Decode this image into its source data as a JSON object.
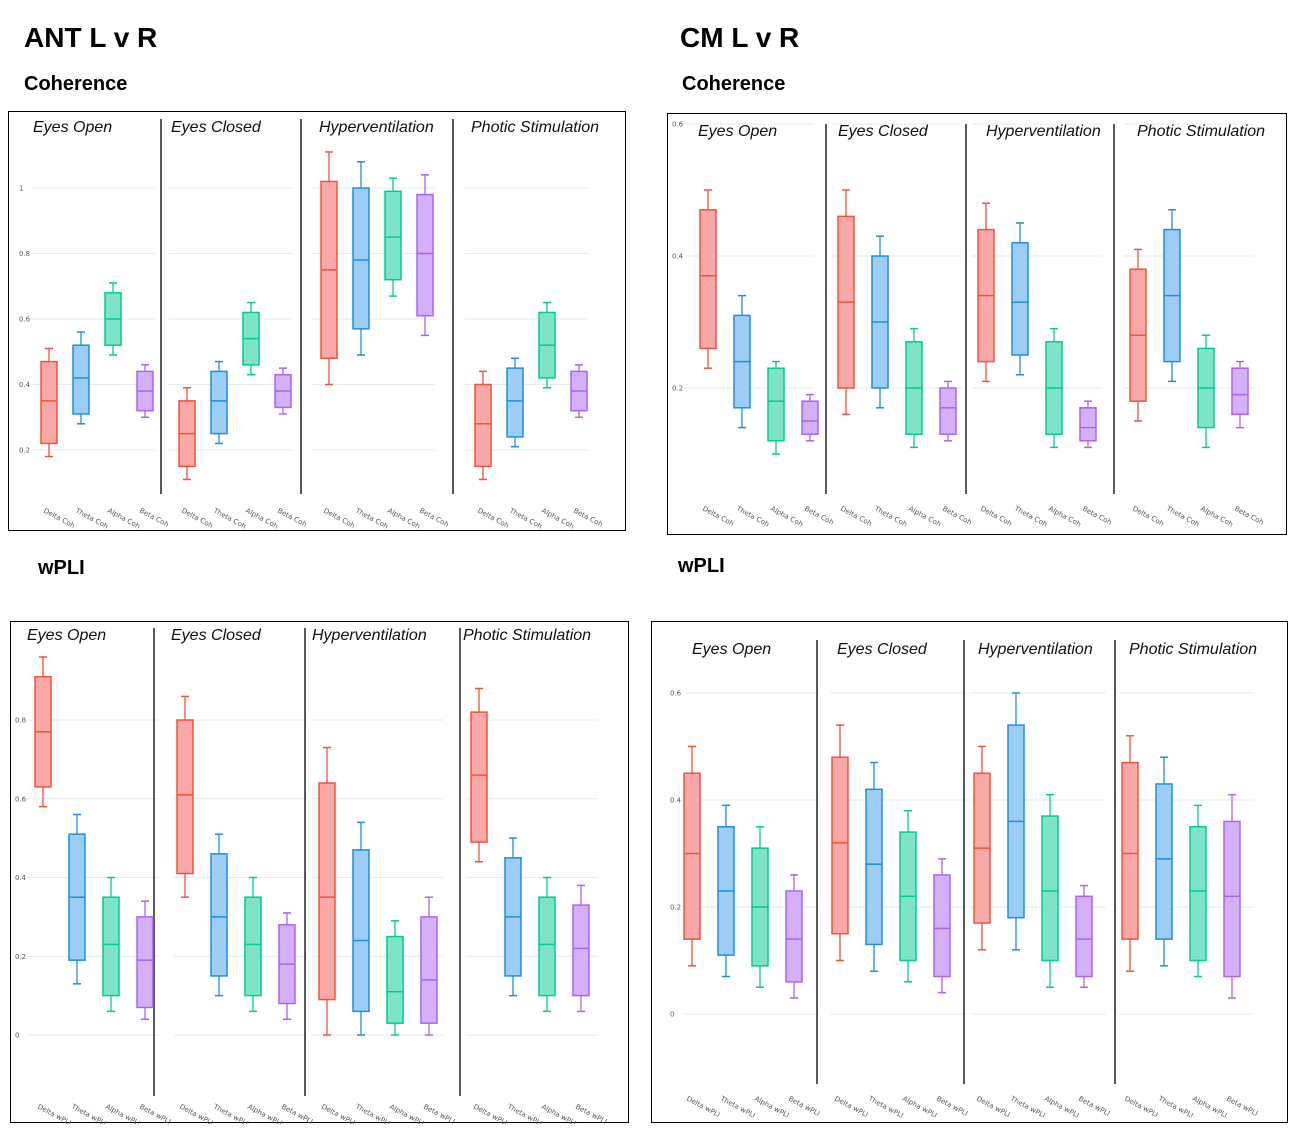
{
  "headings": {
    "left_title": "ANT L v R",
    "right_title": "CM L v R",
    "left_coherence": "Coherence",
    "right_coherence": "Coherence",
    "left_wpli": "wPLI",
    "right_wpli": "wPLI"
  },
  "colors": {
    "delta": "#EF553B",
    "theta": "#1f8fe0",
    "alpha": "#00CC96",
    "beta": "#AB63FA",
    "delta_fill": "#f9a8a8",
    "theta_fill": "#9ccdf5",
    "alpha_fill": "#7fe3c8",
    "beta_fill": "#d4b0f8"
  },
  "chart_data": [
    {
      "id": "ant-coherence",
      "type": "box",
      "title": "ANT L v R — Coherence",
      "panels": [
        "Eyes Open",
        "Eyes Closed",
        "Hyperventilation",
        "Photic Stimulation"
      ],
      "categories": [
        "Delta Coh",
        "Theta Coh",
        "Alpha Coh",
        "Beta Coh"
      ],
      "yticks": [
        "0.2",
        "0.4",
        "0.6",
        "0.8",
        "1"
      ],
      "ytick_values": [
        0.2,
        0.4,
        0.6,
        0.8,
        1.0
      ],
      "ylim": [
        0.05,
        1.2
      ],
      "grid": true,
      "series": [
        {
          "panel": "Eyes Open",
          "boxes": [
            {
              "name": "Delta Coh",
              "min": 0.18,
              "q1": 0.22,
              "median": 0.35,
              "q3": 0.47,
              "max": 0.51
            },
            {
              "name": "Theta Coh",
              "min": 0.28,
              "q1": 0.31,
              "median": 0.42,
              "q3": 0.52,
              "max": 0.56
            },
            {
              "name": "Alpha Coh",
              "min": 0.49,
              "q1": 0.52,
              "median": 0.6,
              "q3": 0.68,
              "max": 0.71
            },
            {
              "name": "Beta Coh",
              "min": 0.3,
              "q1": 0.32,
              "median": 0.38,
              "q3": 0.44,
              "max": 0.46
            }
          ]
        },
        {
          "panel": "Eyes Closed",
          "boxes": [
            {
              "name": "Delta Coh",
              "min": 0.11,
              "q1": 0.15,
              "median": 0.25,
              "q3": 0.35,
              "max": 0.39
            },
            {
              "name": "Theta Coh",
              "min": 0.22,
              "q1": 0.25,
              "median": 0.35,
              "q3": 0.44,
              "max": 0.47
            },
            {
              "name": "Alpha Coh",
              "min": 0.43,
              "q1": 0.46,
              "median": 0.54,
              "q3": 0.62,
              "max": 0.65
            },
            {
              "name": "Beta Coh",
              "min": 0.31,
              "q1": 0.33,
              "median": 0.38,
              "q3": 0.43,
              "max": 0.45
            }
          ]
        },
        {
          "panel": "Hyperventilation",
          "boxes": [
            {
              "name": "Delta Coh",
              "min": 0.4,
              "q1": 0.48,
              "median": 0.75,
              "q3": 1.02,
              "max": 1.11
            },
            {
              "name": "Theta Coh",
              "min": 0.49,
              "q1": 0.57,
              "median": 0.78,
              "q3": 1.0,
              "max": 1.08
            },
            {
              "name": "Alpha Coh",
              "min": 0.67,
              "q1": 0.72,
              "median": 0.85,
              "q3": 0.99,
              "max": 1.03
            },
            {
              "name": "Beta Coh",
              "min": 0.55,
              "q1": 0.61,
              "median": 0.8,
              "q3": 0.98,
              "max": 1.04
            }
          ]
        },
        {
          "panel": "Photic Stimulation",
          "boxes": [
            {
              "name": "Delta Coh",
              "min": 0.11,
              "q1": 0.15,
              "median": 0.28,
              "q3": 0.4,
              "max": 0.44
            },
            {
              "name": "Theta Coh",
              "min": 0.21,
              "q1": 0.24,
              "median": 0.35,
              "q3": 0.45,
              "max": 0.48
            },
            {
              "name": "Alpha Coh",
              "min": 0.39,
              "q1": 0.42,
              "median": 0.52,
              "q3": 0.62,
              "max": 0.65
            },
            {
              "name": "Beta Coh",
              "min": 0.3,
              "q1": 0.32,
              "median": 0.38,
              "q3": 0.44,
              "max": 0.46
            }
          ]
        }
      ]
    },
    {
      "id": "cm-coherence",
      "type": "box",
      "title": "CM L v R — Coherence",
      "panels": [
        "Eyes Open",
        "Eyes Closed",
        "Hyperventilation",
        "Photic Stimulation"
      ],
      "categories": [
        "Delta Coh",
        "Theta Coh",
        "Alpha Coh",
        "Beta Coh"
      ],
      "yticks": [
        "0.2",
        "0.4",
        "0.6"
      ],
      "ytick_values": [
        0.2,
        0.4,
        0.6
      ],
      "ylim": [
        0.08,
        0.6
      ],
      "grid": true,
      "series": [
        {
          "panel": "Eyes Open",
          "boxes": [
            {
              "name": "Delta Coh",
              "min": 0.23,
              "q1": 0.26,
              "median": 0.37,
              "q3": 0.47,
              "max": 0.5
            },
            {
              "name": "Theta Coh",
              "min": 0.14,
              "q1": 0.17,
              "median": 0.24,
              "q3": 0.31,
              "max": 0.34
            },
            {
              "name": "Alpha Coh",
              "min": 0.1,
              "q1": 0.12,
              "median": 0.18,
              "q3": 0.23,
              "max": 0.24
            },
            {
              "name": "Beta Coh",
              "min": 0.12,
              "q1": 0.13,
              "median": 0.15,
              "q3": 0.18,
              "max": 0.19
            }
          ]
        },
        {
          "panel": "Eyes Closed",
          "boxes": [
            {
              "name": "Delta Coh",
              "min": 0.16,
              "q1": 0.2,
              "median": 0.33,
              "q3": 0.46,
              "max": 0.5
            },
            {
              "name": "Theta Coh",
              "min": 0.17,
              "q1": 0.2,
              "median": 0.3,
              "q3": 0.4,
              "max": 0.43
            },
            {
              "name": "Alpha Coh",
              "min": 0.11,
              "q1": 0.13,
              "median": 0.2,
              "q3": 0.27,
              "max": 0.29
            },
            {
              "name": "Beta Coh",
              "min": 0.12,
              "q1": 0.13,
              "median": 0.17,
              "q3": 0.2,
              "max": 0.21
            }
          ]
        },
        {
          "panel": "Hyperventilation",
          "boxes": [
            {
              "name": "Delta Coh",
              "min": 0.21,
              "q1": 0.24,
              "median": 0.34,
              "q3": 0.44,
              "max": 0.48
            },
            {
              "name": "Theta Coh",
              "min": 0.22,
              "q1": 0.25,
              "median": 0.33,
              "q3": 0.42,
              "max": 0.45
            },
            {
              "name": "Alpha Coh",
              "min": 0.11,
              "q1": 0.13,
              "median": 0.2,
              "q3": 0.27,
              "max": 0.29
            },
            {
              "name": "Beta Coh",
              "min": 0.11,
              "q1": 0.12,
              "median": 0.14,
              "q3": 0.17,
              "max": 0.18
            }
          ]
        },
        {
          "panel": "Photic Stimulation",
          "boxes": [
            {
              "name": "Delta Coh",
              "min": 0.15,
              "q1": 0.18,
              "median": 0.28,
              "q3": 0.38,
              "max": 0.41
            },
            {
              "name": "Theta Coh",
              "min": 0.21,
              "q1": 0.24,
              "median": 0.34,
              "q3": 0.44,
              "max": 0.47
            },
            {
              "name": "Alpha Coh",
              "min": 0.11,
              "q1": 0.14,
              "median": 0.2,
              "q3": 0.26,
              "max": 0.28
            },
            {
              "name": "Beta Coh",
              "min": 0.14,
              "q1": 0.16,
              "median": 0.19,
              "q3": 0.23,
              "max": 0.24
            }
          ]
        }
      ]
    },
    {
      "id": "ant-wpli",
      "type": "box",
      "title": "ANT L v R — wPLI",
      "panels": [
        "Eyes Open",
        "Eyes Closed",
        "Hyperventilation",
        "Photic Stimulation"
      ],
      "categories": [
        "Delta wPLI",
        "Theta wPLI",
        "Alpha wPLI",
        "Beta wPLI"
      ],
      "yticks": [
        "0",
        "0.2",
        "0.4",
        "0.6",
        "0.8"
      ],
      "ytick_values": [
        0,
        0.2,
        0.4,
        0.6,
        0.8
      ],
      "ylim": [
        -0.14,
        0.97
      ],
      "grid": true,
      "series": [
        {
          "panel": "Eyes Open",
          "boxes": [
            {
              "name": "Delta wPLI",
              "min": 0.58,
              "q1": 0.63,
              "median": 0.77,
              "q3": 0.91,
              "max": 0.96
            },
            {
              "name": "Theta wPLI",
              "min": 0.13,
              "q1": 0.19,
              "median": 0.35,
              "q3": 0.51,
              "max": 0.56
            },
            {
              "name": "Alpha wPLI",
              "min": 0.06,
              "q1": 0.1,
              "median": 0.23,
              "q3": 0.35,
              "max": 0.4
            },
            {
              "name": "Beta wPLI",
              "min": 0.04,
              "q1": 0.07,
              "median": 0.19,
              "q3": 0.3,
              "max": 0.34
            }
          ]
        },
        {
          "panel": "Eyes Closed",
          "boxes": [
            {
              "name": "Delta wPLI",
              "min": 0.35,
              "q1": 0.41,
              "median": 0.61,
              "q3": 0.8,
              "max": 0.86
            },
            {
              "name": "Theta wPLI",
              "min": 0.1,
              "q1": 0.15,
              "median": 0.3,
              "q3": 0.46,
              "max": 0.51
            },
            {
              "name": "Alpha wPLI",
              "min": 0.06,
              "q1": 0.1,
              "median": 0.23,
              "q3": 0.35,
              "max": 0.4
            },
            {
              "name": "Beta wPLI",
              "min": 0.04,
              "q1": 0.08,
              "median": 0.18,
              "q3": 0.28,
              "max": 0.31
            }
          ]
        },
        {
          "panel": "Hyperventilation",
          "boxes": [
            {
              "name": "Delta wPLI",
              "min": 0.0,
              "q1": 0.09,
              "median": 0.35,
              "q3": 0.64,
              "max": 0.73
            },
            {
              "name": "Theta wPLI",
              "min": 0.0,
              "q1": 0.06,
              "median": 0.24,
              "q3": 0.47,
              "max": 0.54
            },
            {
              "name": "Alpha wPLI",
              "min": 0.0,
              "q1": 0.03,
              "median": 0.11,
              "q3": 0.25,
              "max": 0.29
            },
            {
              "name": "Beta wPLI",
              "min": 0.0,
              "q1": 0.03,
              "median": 0.14,
              "q3": 0.3,
              "max": 0.35
            }
          ]
        },
        {
          "panel": "Photic Stimulation",
          "boxes": [
            {
              "name": "Delta wPLI",
              "min": 0.44,
              "q1": 0.49,
              "median": 0.66,
              "q3": 0.82,
              "max": 0.88
            },
            {
              "name": "Theta wPLI",
              "min": 0.1,
              "q1": 0.15,
              "median": 0.3,
              "q3": 0.45,
              "max": 0.5
            },
            {
              "name": "Alpha wPLI",
              "min": 0.06,
              "q1": 0.1,
              "median": 0.23,
              "q3": 0.35,
              "max": 0.4
            },
            {
              "name": "Beta wPLI",
              "min": 0.06,
              "q1": 0.1,
              "median": 0.22,
              "q3": 0.33,
              "max": 0.38
            }
          ]
        }
      ]
    },
    {
      "id": "cm-wpli",
      "type": "box",
      "title": "CM L v R — wPLI",
      "panels": [
        "Eyes Open",
        "Eyes Closed",
        "Hyperventilation",
        "Photic Stimulation"
      ],
      "categories": [
        "Delta wPLI",
        "Theta wPLI",
        "Alpha wPLI",
        "Beta wPLI"
      ],
      "yticks": [
        "0",
        "0.2",
        "0.4",
        "0.6"
      ],
      "ytick_values": [
        0,
        0.2,
        0.4,
        0.6
      ],
      "ylim": [
        -0.13,
        0.72
      ],
      "grid": true,
      "series": [
        {
          "panel": "Eyes Open",
          "boxes": [
            {
              "name": "Delta wPLI",
              "min": 0.09,
              "q1": 0.14,
              "median": 0.3,
              "q3": 0.45,
              "max": 0.5
            },
            {
              "name": "Theta wPLI",
              "min": 0.07,
              "q1": 0.11,
              "median": 0.23,
              "q3": 0.35,
              "max": 0.39
            },
            {
              "name": "Alpha wPLI",
              "min": 0.05,
              "q1": 0.09,
              "median": 0.2,
              "q3": 0.31,
              "max": 0.35
            },
            {
              "name": "Beta wPLI",
              "min": 0.03,
              "q1": 0.06,
              "median": 0.14,
              "q3": 0.23,
              "max": 0.26
            }
          ]
        },
        {
          "panel": "Eyes Closed",
          "boxes": [
            {
              "name": "Delta wPLI",
              "min": 0.1,
              "q1": 0.15,
              "median": 0.32,
              "q3": 0.48,
              "max": 0.54
            },
            {
              "name": "Theta wPLI",
              "min": 0.08,
              "q1": 0.13,
              "median": 0.28,
              "q3": 0.42,
              "max": 0.47
            },
            {
              "name": "Alpha wPLI",
              "min": 0.06,
              "q1": 0.1,
              "median": 0.22,
              "q3": 0.34,
              "max": 0.38
            },
            {
              "name": "Beta wPLI",
              "min": 0.04,
              "q1": 0.07,
              "median": 0.16,
              "q3": 0.26,
              "max": 0.29
            }
          ]
        },
        {
          "panel": "Hyperventilation",
          "boxes": [
            {
              "name": "Delta wPLI",
              "min": 0.12,
              "q1": 0.17,
              "median": 0.31,
              "q3": 0.45,
              "max": 0.5
            },
            {
              "name": "Theta wPLI",
              "min": 0.12,
              "q1": 0.18,
              "median": 0.36,
              "q3": 0.54,
              "max": 0.6
            },
            {
              "name": "Alpha wPLI",
              "min": 0.05,
              "q1": 0.1,
              "median": 0.23,
              "q3": 0.37,
              "max": 0.41
            },
            {
              "name": "Beta wPLI",
              "min": 0.05,
              "q1": 0.07,
              "median": 0.14,
              "q3": 0.22,
              "max": 0.24
            }
          ]
        },
        {
          "panel": "Photic Stimulation",
          "boxes": [
            {
              "name": "Delta wPLI",
              "min": 0.08,
              "q1": 0.14,
              "median": 0.3,
              "q3": 0.47,
              "max": 0.52
            },
            {
              "name": "Theta wPLI",
              "min": 0.09,
              "q1": 0.14,
              "median": 0.29,
              "q3": 0.43,
              "max": 0.48
            },
            {
              "name": "Alpha wPLI",
              "min": 0.07,
              "q1": 0.1,
              "median": 0.23,
              "q3": 0.35,
              "max": 0.39
            },
            {
              "name": "Beta wPLI",
              "min": 0.03,
              "q1": 0.07,
              "median": 0.22,
              "q3": 0.36,
              "max": 0.41
            }
          ]
        }
      ]
    }
  ]
}
